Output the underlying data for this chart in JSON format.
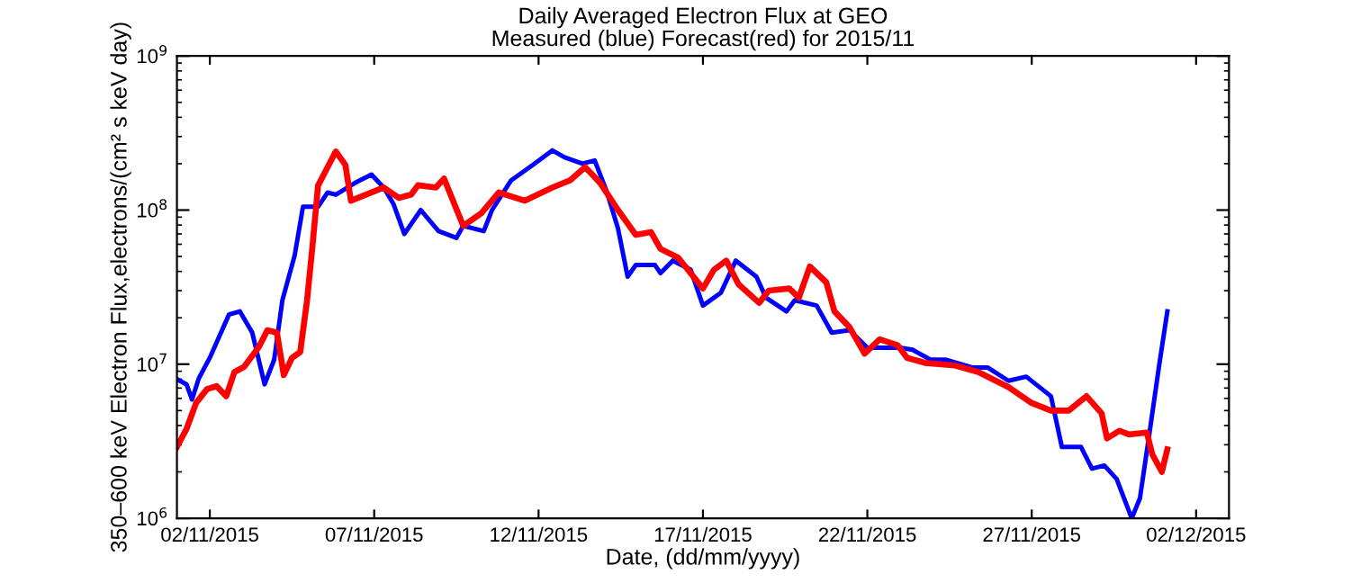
{
  "chart_data": {
    "type": "line",
    "title": "Daily Averaged Electron Flux at GEO",
    "subtitle": "Measured (blue) Forecast(red) for 2015/11",
    "xlabel": "Date, (dd/mm/yyyy)",
    "ylabel": "350–600 keV Electron Flux,electrons/(cm² s keV day)",
    "log": "y",
    "grid": false,
    "line_style": "solid",
    "xlim": [
      "2015-11-01",
      "2015-12-03"
    ],
    "xticks": [
      {
        "value": "2015-11-02",
        "label": "02/11/2015"
      },
      {
        "value": "2015-11-07",
        "label": "07/11/2015"
      },
      {
        "value": "2015-11-12",
        "label": "12/11/2015"
      },
      {
        "value": "2015-11-17",
        "label": "17/11/2015"
      },
      {
        "value": "2015-11-22",
        "label": "22/11/2015"
      },
      {
        "value": "2015-11-27",
        "label": "27/11/2015"
      },
      {
        "value": "2015-12-02",
        "label": "02/12/2015"
      }
    ],
    "ylim": [
      1000000,
      1000000000
    ],
    "yticks": [
      {
        "value": 1000000,
        "label": "10$^{6}$"
      },
      {
        "value": 10000000,
        "label": "10$^{7}$"
      },
      {
        "value": 100000000,
        "label": "10$^{8}$"
      },
      {
        "value": 1000000000,
        "label": "10$^{9}$"
      }
    ],
    "series": [
      {
        "color": "#0000ff",
        "x": [
          "2015-11-01T00:00",
          "2015-11-01T07:00",
          "2015-11-01T11:00",
          "2015-11-01T16:00",
          "2015-11-02T00:00",
          "2015-11-02T14:00",
          "2015-11-02T22:00",
          "2015-11-03T07:00",
          "2015-11-03T16:00",
          "2015-11-03T23:00",
          "2015-11-04T05:00",
          "2015-11-04T14:00",
          "2015-11-04T20:00",
          "2015-11-05T07:00",
          "2015-11-05T14:00",
          "2015-11-05T20:00",
          "2015-11-06T10:00",
          "2015-11-06T22:00",
          "2015-11-07T07:00",
          "2015-11-07T14:00",
          "2015-11-07T22:00",
          "2015-11-08T10:00",
          "2015-11-08T23:00",
          "2015-11-09T12:00",
          "2015-11-09T17:00",
          "2015-11-10T08:00",
          "2015-11-10T14:00",
          "2015-11-11T04:00",
          "2015-11-11T21:00",
          "2015-11-12T10:00",
          "2015-11-12T19:00",
          "2015-11-13T08:00",
          "2015-11-13T17:00",
          "2015-11-14T02:00",
          "2015-11-14T10:00",
          "2015-11-14T17:00",
          "2015-11-14T23:00",
          "2015-11-15T13:00",
          "2015-11-15T17:00",
          "2015-11-16T02:00",
          "2015-11-16T15:00",
          "2015-11-17T00:00",
          "2015-11-17T13:00",
          "2015-11-18T00:00",
          "2015-11-18T15:00",
          "2015-11-18T22:00",
          "2015-11-19T13:00",
          "2015-11-19T19:00",
          "2015-11-20T11:00",
          "2015-11-20T22:00",
          "2015-11-21T11:00",
          "2015-11-22T00:00",
          "2015-11-23T00:00",
          "2015-11-23T09:00",
          "2015-11-23T22:00",
          "2015-11-24T09:00",
          "2015-11-25T05:00",
          "2015-11-25T16:00",
          "2015-11-26T07:00",
          "2015-11-26T20:00",
          "2015-11-27T14:00",
          "2015-11-27T22:00",
          "2015-11-28T12:00",
          "2015-11-28T20:00",
          "2015-11-29T05:00",
          "2015-11-29T14:00",
          "2015-11-30T01:00",
          "2015-11-30T07:00",
          "2015-11-30T14:00",
          "2015-11-30T21:00",
          "2015-12-01T03:00"
        ],
        "values": [
          8000000.0,
          7400000.0,
          5900000.0,
          8100000.0,
          11000000.0,
          21000000.0,
          22000000.0,
          16000000.0,
          7400000.0,
          10700000.0,
          26000000.0,
          51000000.0,
          105000000.0,
          105000000.0,
          130000000.0,
          126000000.0,
          150000000.0,
          170000000.0,
          140000000.0,
          110000000.0,
          70000000.0,
          100000000.0,
          73000000.0,
          66000000.0,
          79000000.0,
          73000000.0,
          100000000.0,
          156000000.0,
          200000000.0,
          244000000.0,
          220000000.0,
          200000000.0,
          210000000.0,
          130000000.0,
          76000000.0,
          37000000.0,
          44000000.0,
          44000000.0,
          39000000.0,
          47000000.0,
          41000000.0,
          24000000.0,
          29000000.0,
          47000000.0,
          37000000.0,
          27000000.0,
          22000000.0,
          26000000.0,
          24000000.0,
          16000000.0,
          16600000.0,
          12800000.0,
          12800000.0,
          12400000.0,
          10700000.0,
          10700000.0,
          9500000.0,
          9500000.0,
          7800000.0,
          8300000.0,
          6200000.0,
          2900000.0,
          2900000.0,
          2100000.0,
          2200000.0,
          1800000.0,
          1000000.0,
          1350000.0,
          3600000.0,
          9800000.0,
          22000000.0
        ]
      },
      {
        "color": "#ff0000",
        "x": [
          "2015-11-01T00:00",
          "2015-11-01T07:00",
          "2015-11-01T14:00",
          "2015-11-01T22:00",
          "2015-11-02T05:00",
          "2015-11-02T12:00",
          "2015-11-02T18:00",
          "2015-11-03T01:00",
          "2015-11-03T12:00",
          "2015-11-03T18:00",
          "2015-11-04T01:00",
          "2015-11-04T06:00",
          "2015-11-04T12:00",
          "2015-11-04T18:00",
          "2015-11-04T23:00",
          "2015-11-05T03:00",
          "2015-11-05T07:00",
          "2015-11-05T14:00",
          "2015-11-05T20:00",
          "2015-11-06T03:00",
          "2015-11-06T07:00",
          "2015-11-06T18:00",
          "2015-11-07T07:00",
          "2015-11-07T18:00",
          "2015-11-08T03:00",
          "2015-11-08T08:00",
          "2015-11-08T21:00",
          "2015-11-09T03:00",
          "2015-11-09T17:00",
          "2015-11-10T06:00",
          "2015-11-10T19:00",
          "2015-11-11T14:00",
          "2015-11-12T10:00",
          "2015-11-12T23:00",
          "2015-11-13T10:00",
          "2015-11-13T21:00",
          "2015-11-14T10:00",
          "2015-11-14T23:00",
          "2015-11-15T10:00",
          "2015-11-15T17:00",
          "2015-11-16T06:00",
          "2015-11-17T00:00",
          "2015-11-17T08:00",
          "2015-11-17T17:00",
          "2015-11-18T02:00",
          "2015-11-18T17:00",
          "2015-11-19T00:00",
          "2015-11-19T15:00",
          "2015-11-19T22:00",
          "2015-11-20T06:00",
          "2015-11-20T18:00",
          "2015-11-21T00:00",
          "2015-11-21T11:00",
          "2015-11-21T22:00",
          "2015-11-22T09:00",
          "2015-11-22T22:00",
          "2015-11-23T05:00",
          "2015-11-23T18:00",
          "2015-11-24T16:00",
          "2015-11-25T09:00",
          "2015-11-26T07:00",
          "2015-11-27T00:00",
          "2015-11-27T14:00",
          "2015-11-28T03:00",
          "2015-11-28T16:00",
          "2015-11-29T03:00",
          "2015-11-29T07:00",
          "2015-11-29T16:00",
          "2015-11-29T23:00",
          "2015-11-30T12:00",
          "2015-11-30T16:00",
          "2015-11-30T23:00",
          "2015-12-01T03:00"
        ],
        "values": [
          2900000.0,
          3800000.0,
          5600000.0,
          6900000.0,
          7200000.0,
          6200000.0,
          8900000.0,
          9600000.0,
          13000000.0,
          16600000.0,
          16000000.0,
          8500000.0,
          11000000.0,
          12000000.0,
          26000000.0,
          59000000.0,
          144000000.0,
          190000000.0,
          240000000.0,
          196000000.0,
          115000000.0,
          126000000.0,
          140000000.0,
          120000000.0,
          126000000.0,
          145000000.0,
          140000000.0,
          160000000.0,
          79000000.0,
          95000000.0,
          130000000.0,
          115000000.0,
          140000000.0,
          156000000.0,
          190000000.0,
          150000000.0,
          100000000.0,
          69000000.0,
          72000000.0,
          56000000.0,
          49000000.0,
          31000000.0,
          41000000.0,
          47000000.0,
          33000000.0,
          25000000.0,
          30000000.0,
          31000000.0,
          27000000.0,
          43000000.0,
          34000000.0,
          22000000.0,
          17400000.0,
          11700000.0,
          14500000.0,
          13300000.0,
          11000000.0,
          10200000.0,
          9800000.0,
          8900000.0,
          7100000.0,
          5600000.0,
          5000000.0,
          5000000.0,
          6200000.0,
          4800000.0,
          3300000.0,
          3700000.0,
          3500000.0,
          3600000.0,
          2600000.0,
          2000000.0,
          2800000.0
        ]
      }
    ]
  }
}
